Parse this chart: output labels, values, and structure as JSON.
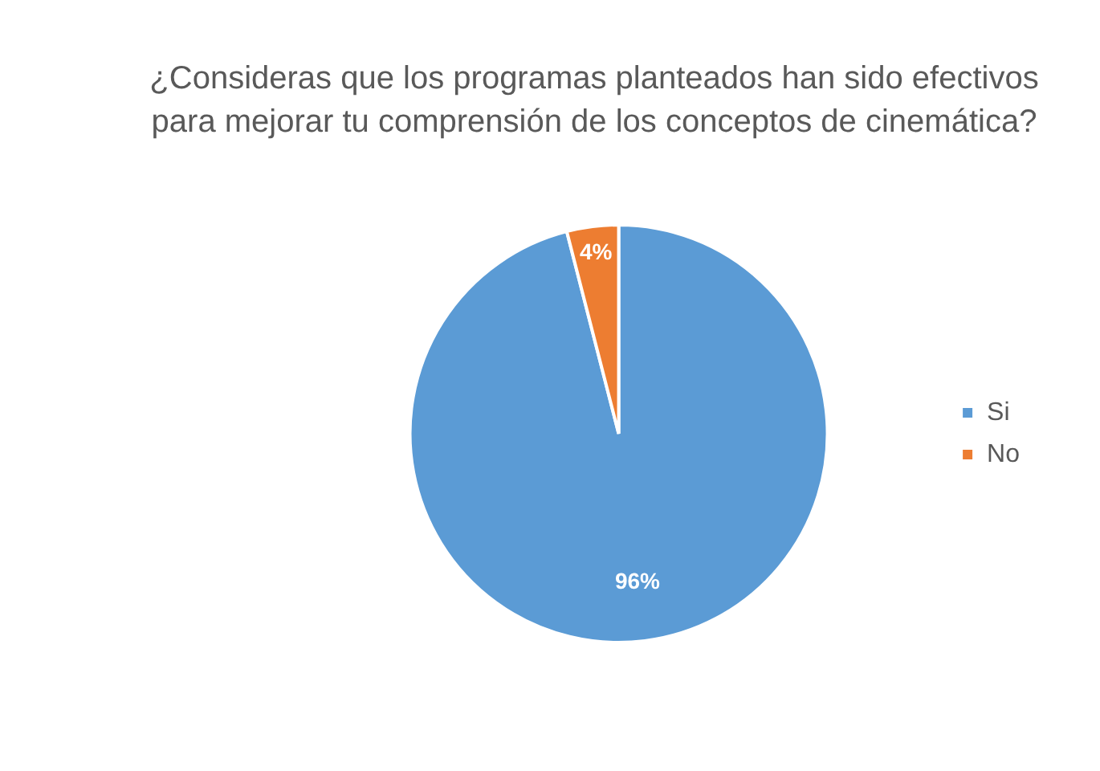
{
  "chart_data": {
    "type": "pie",
    "title": "¿Consideras que los programas planteados han sido efectivos para mejorar tu comprensión de los conceptos de cinemática?",
    "categories": [
      "Si",
      "No"
    ],
    "values": [
      96,
      4
    ],
    "colors": [
      "#5b9bd5",
      "#ed7d31"
    ],
    "value_labels": [
      "96%",
      "4%"
    ],
    "legend": "right"
  }
}
